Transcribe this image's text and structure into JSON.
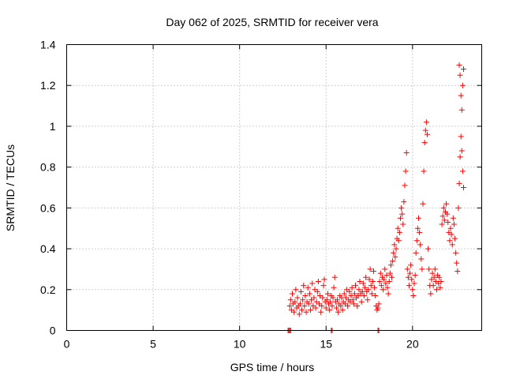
{
  "chart_data": {
    "type": "scatter",
    "title": "Day 062 of 2025, SRMTID for receiver vera",
    "xlabel": "GPS time / hours",
    "ylabel": "SRMTID / TECUs",
    "xlim": [
      0,
      24
    ],
    "ylim": [
      0,
      1.4
    ],
    "xticks": [
      0,
      5,
      10,
      15,
      20
    ],
    "yticks": [
      0,
      0.2,
      0.4,
      0.6,
      0.8,
      1,
      1.2,
      1.4
    ],
    "xtick_labels": [
      "0",
      "5",
      "10",
      "15",
      "20"
    ],
    "ytick_labels": [
      "0",
      "0.2",
      "0.4",
      "0.6",
      "0.8",
      "1",
      "1.2",
      "1.4"
    ],
    "grid": true,
    "marker": "+",
    "color": "#ff0000",
    "series": [
      {
        "name": "SRMTID",
        "points": [
          [
            12.8,
            0.0
          ],
          [
            12.85,
            0.0
          ],
          [
            12.9,
            0.0
          ],
          [
            12.95,
            0.0
          ],
          [
            15.3,
            0.0
          ],
          [
            15.35,
            0.0
          ],
          [
            18.0,
            0.0
          ],
          [
            18.05,
            0.0
          ],
          [
            12.9,
            0.12
          ],
          [
            12.95,
            0.15
          ],
          [
            13.0,
            0.1
          ],
          [
            13.05,
            0.18
          ],
          [
            13.1,
            0.13
          ],
          [
            13.15,
            0.09
          ],
          [
            13.2,
            0.14
          ],
          [
            13.25,
            0.2
          ],
          [
            13.3,
            0.11
          ],
          [
            13.35,
            0.16
          ],
          [
            13.4,
            0.12
          ],
          [
            13.45,
            0.08
          ],
          [
            13.5,
            0.13
          ],
          [
            13.55,
            0.19
          ],
          [
            13.6,
            0.1
          ],
          [
            13.65,
            0.15
          ],
          [
            13.7,
            0.22
          ],
          [
            13.75,
            0.12
          ],
          [
            13.8,
            0.17
          ],
          [
            13.85,
            0.09
          ],
          [
            13.9,
            0.14
          ],
          [
            13.95,
            0.21
          ],
          [
            14.0,
            0.13
          ],
          [
            14.05,
            0.18
          ],
          [
            14.1,
            0.1
          ],
          [
            14.15,
            0.15
          ],
          [
            14.2,
            0.23
          ],
          [
            14.25,
            0.12
          ],
          [
            14.3,
            0.16
          ],
          [
            14.35,
            0.2
          ],
          [
            14.4,
            0.11
          ],
          [
            14.45,
            0.14
          ],
          [
            14.5,
            0.19
          ],
          [
            14.55,
            0.24
          ],
          [
            14.6,
            0.13
          ],
          [
            14.65,
            0.17
          ],
          [
            14.7,
            0.09
          ],
          [
            14.75,
            0.12
          ],
          [
            14.8,
            0.16
          ],
          [
            14.85,
            0.22
          ],
          [
            14.9,
            0.25
          ],
          [
            14.95,
            0.14
          ],
          [
            15.0,
            0.11
          ],
          [
            15.05,
            0.15
          ],
          [
            15.1,
            0.18
          ],
          [
            15.15,
            0.13
          ],
          [
            15.2,
            0.1
          ],
          [
            15.25,
            0.14
          ],
          [
            15.3,
            0.17
          ],
          [
            15.35,
            0.12
          ],
          [
            15.4,
            0.16
          ],
          [
            15.45,
            0.21
          ],
          [
            15.5,
            0.26
          ],
          [
            15.55,
            0.14
          ],
          [
            15.6,
            0.11
          ],
          [
            15.65,
            0.15
          ],
          [
            15.7,
            0.09
          ],
          [
            15.75,
            0.13
          ],
          [
            15.8,
            0.17
          ],
          [
            15.85,
            0.12
          ],
          [
            15.9,
            0.16
          ],
          [
            15.95,
            0.1
          ],
          [
            16.0,
            0.14
          ],
          [
            16.05,
            0.18
          ],
          [
            16.1,
            0.13
          ],
          [
            16.15,
            0.16
          ],
          [
            16.2,
            0.2
          ],
          [
            16.25,
            0.12
          ],
          [
            16.3,
            0.15
          ],
          [
            16.35,
            0.19
          ],
          [
            16.4,
            0.14
          ],
          [
            16.45,
            0.17
          ],
          [
            16.5,
            0.21
          ],
          [
            16.55,
            0.15
          ],
          [
            16.6,
            0.13
          ],
          [
            16.65,
            0.18
          ],
          [
            16.7,
            0.22
          ],
          [
            16.75,
            0.16
          ],
          [
            16.8,
            0.12
          ],
          [
            16.85,
            0.17
          ],
          [
            16.9,
            0.2
          ],
          [
            16.95,
            0.24
          ],
          [
            17.0,
            0.18
          ],
          [
            17.05,
            0.14
          ],
          [
            17.1,
            0.19
          ],
          [
            17.15,
            0.23
          ],
          [
            17.2,
            0.17
          ],
          [
            17.25,
            0.21
          ],
          [
            17.3,
            0.26
          ],
          [
            17.35,
            0.19
          ],
          [
            17.4,
            0.15
          ],
          [
            17.45,
            0.2
          ],
          [
            17.5,
            0.25
          ],
          [
            17.55,
            0.3
          ],
          [
            17.6,
            0.22
          ],
          [
            17.65,
            0.18
          ],
          [
            17.7,
            0.24
          ],
          [
            17.75,
            0.29
          ],
          [
            17.8,
            0.21
          ],
          [
            17.85,
            0.17
          ],
          [
            17.9,
            0.12
          ],
          [
            17.95,
            0.1
          ],
          [
            18.0,
            0.11
          ],
          [
            18.05,
            0.13
          ],
          [
            18.1,
            0.24
          ],
          [
            18.15,
            0.28
          ],
          [
            18.2,
            0.22
          ],
          [
            18.25,
            0.26
          ],
          [
            18.3,
            0.2
          ],
          [
            18.35,
            0.25
          ],
          [
            18.4,
            0.3
          ],
          [
            18.45,
            0.23
          ],
          [
            18.5,
            0.27
          ],
          [
            18.55,
            0.21
          ],
          [
            18.6,
            0.18
          ],
          [
            18.65,
            0.24
          ],
          [
            18.7,
            0.28
          ],
          [
            18.75,
            0.32
          ],
          [
            18.8,
            0.26
          ],
          [
            18.85,
            0.34
          ],
          [
            18.9,
            0.38
          ],
          [
            18.95,
            0.42
          ],
          [
            19.0,
            0.36
          ],
          [
            19.05,
            0.4
          ],
          [
            19.1,
            0.45
          ],
          [
            19.15,
            0.5
          ],
          [
            19.2,
            0.44
          ],
          [
            19.25,
            0.48
          ],
          [
            19.3,
            0.55
          ],
          [
            19.35,
            0.6
          ],
          [
            19.4,
            0.57
          ],
          [
            19.45,
            0.52
          ],
          [
            19.5,
            0.63
          ],
          [
            19.55,
            0.71
          ],
          [
            19.6,
            0.78
          ],
          [
            19.65,
            0.87
          ],
          [
            19.7,
            0.3
          ],
          [
            19.75,
            0.26
          ],
          [
            19.8,
            0.22
          ],
          [
            19.85,
            0.28
          ],
          [
            19.9,
            0.32
          ],
          [
            19.95,
            0.25
          ],
          [
            20.0,
            0.2
          ],
          [
            20.05,
            0.17
          ],
          [
            20.1,
            0.23
          ],
          [
            20.15,
            0.27
          ],
          [
            20.2,
            0.38
          ],
          [
            20.25,
            0.44
          ],
          [
            20.3,
            0.5
          ],
          [
            20.35,
            0.55
          ],
          [
            20.4,
            0.48
          ],
          [
            20.45,
            0.42
          ],
          [
            20.5,
            0.35
          ],
          [
            20.55,
            0.3
          ],
          [
            20.6,
            0.62
          ],
          [
            20.65,
            0.78
          ],
          [
            20.7,
            0.92
          ],
          [
            20.75,
            0.98
          ],
          [
            20.8,
            1.02
          ],
          [
            20.85,
            0.96
          ],
          [
            20.9,
            0.4
          ],
          [
            20.95,
            0.3
          ],
          [
            21.0,
            0.22
          ],
          [
            21.05,
            0.18
          ],
          [
            21.1,
            0.25
          ],
          [
            21.15,
            0.28
          ],
          [
            21.2,
            0.22
          ],
          [
            21.25,
            0.26
          ],
          [
            21.3,
            0.3
          ],
          [
            21.35,
            0.24
          ],
          [
            21.4,
            0.2
          ],
          [
            21.45,
            0.27
          ],
          [
            21.5,
            0.23
          ],
          [
            21.55,
            0.26
          ],
          [
            21.6,
            0.21
          ],
          [
            21.65,
            0.24
          ],
          [
            21.7,
            0.52
          ],
          [
            21.75,
            0.56
          ],
          [
            21.8,
            0.6
          ],
          [
            21.85,
            0.54
          ],
          [
            21.9,
            0.58
          ],
          [
            21.95,
            0.62
          ],
          [
            22.0,
            0.57
          ],
          [
            22.05,
            0.53
          ],
          [
            22.1,
            0.48
          ],
          [
            22.15,
            0.44
          ],
          [
            22.2,
            0.5
          ],
          [
            22.25,
            0.47
          ],
          [
            22.3,
            0.42
          ],
          [
            22.35,
            0.55
          ],
          [
            22.4,
            0.52
          ],
          [
            22.45,
            0.45
          ],
          [
            22.5,
            0.38
          ],
          [
            22.55,
            0.33
          ],
          [
            22.6,
            0.29
          ],
          [
            22.65,
            0.6
          ],
          [
            22.7,
            0.72
          ],
          [
            22.75,
            0.85
          ],
          [
            22.8,
            0.95
          ],
          [
            22.85,
            1.08
          ],
          [
            22.9,
            1.2
          ],
          [
            22.95,
            1.28
          ],
          [
            22.7,
            1.3
          ],
          [
            22.75,
            1.25
          ],
          [
            22.8,
            1.15
          ],
          [
            22.85,
            0.88
          ],
          [
            22.9,
            0.78
          ],
          [
            22.95,
            0.7
          ]
        ]
      }
    ]
  }
}
